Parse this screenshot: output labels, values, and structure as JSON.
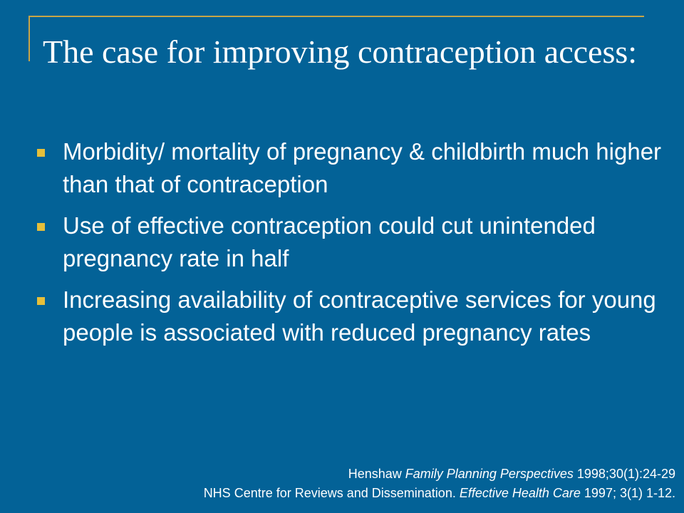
{
  "slide": {
    "title": "The case for improving contraception access:",
    "accent_color": "#c8a546",
    "background_color": "#036297",
    "bullet_icon": "square-bullet-icon",
    "bullets": [
      "Morbidity/ mortality of pregnancy & childbirth much higher than that of contraception",
      "Use of effective contraception could cut unintended pregnancy rate in half",
      "Increasing availability of contraceptive services for young people is associated with reduced pregnancy rates"
    ],
    "references": [
      {
        "before": "Henshaw ",
        "journal": "Family Planning Perspectives",
        "after": " 1998;30(1):24-29"
      },
      {
        "before": "NHS Centre for Reviews and Dissemination. ",
        "journal": "Effective Health Care",
        "after": " 1997; 3(1) 1-12."
      }
    ]
  }
}
